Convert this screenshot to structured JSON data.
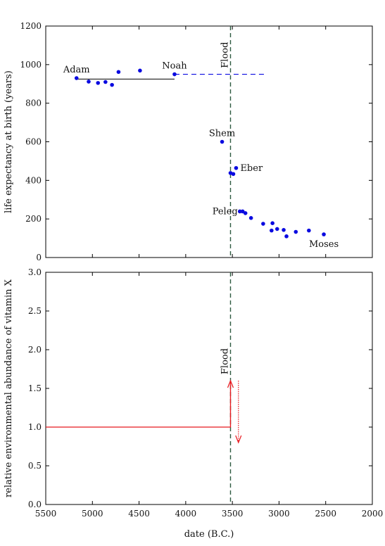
{
  "chart_data": [
    {
      "type": "scatter",
      "ylabel": "life expectancy at birth (years)",
      "xlim": [
        5500,
        2000
      ],
      "ylim": [
        0,
        1200
      ],
      "x_ticks": [
        5500,
        5000,
        4500,
        4000,
        3500,
        3000,
        2500,
        2000
      ],
      "y_ticks": [
        0,
        200,
        400,
        600,
        800,
        1000,
        1200
      ],
      "grid": false,
      "points": [
        {
          "x": 5170,
          "y": 930
        },
        {
          "x": 5040,
          "y": 912
        },
        {
          "x": 4940,
          "y": 905
        },
        {
          "x": 4860,
          "y": 910
        },
        {
          "x": 4790,
          "y": 895
        },
        {
          "x": 4720,
          "y": 962
        },
        {
          "x": 4490,
          "y": 969
        },
        {
          "x": 4120,
          "y": 950
        },
        {
          "x": 3610,
          "y": 600
        },
        {
          "x": 3520,
          "y": 438
        },
        {
          "x": 3490,
          "y": 433
        },
        {
          "x": 3460,
          "y": 464
        },
        {
          "x": 3420,
          "y": 239
        },
        {
          "x": 3390,
          "y": 239
        },
        {
          "x": 3360,
          "y": 230
        },
        {
          "x": 3300,
          "y": 205
        },
        {
          "x": 3170,
          "y": 175
        },
        {
          "x": 3080,
          "y": 140
        },
        {
          "x": 3070,
          "y": 178
        },
        {
          "x": 3020,
          "y": 148
        },
        {
          "x": 2950,
          "y": 143
        },
        {
          "x": 2920,
          "y": 110
        },
        {
          "x": 2820,
          "y": 133
        },
        {
          "x": 2680,
          "y": 140
        },
        {
          "x": 2520,
          "y": 120
        }
      ],
      "lines": [
        {
          "style": "solid",
          "x": [
            5170,
            4120
          ],
          "y": [
            925,
            925
          ]
        },
        {
          "style": "dashed",
          "x": [
            4120,
            3150
          ],
          "y": [
            950,
            950
          ]
        }
      ],
      "vline": {
        "x": 3520,
        "label": "Flood",
        "label_y": 1050
      },
      "annotations": [
        {
          "text": "Adam",
          "x": 5170,
          "y": 930
        },
        {
          "text": "Noah",
          "x": 4120,
          "y": 950
        },
        {
          "text": "Shem",
          "x": 3610,
          "y": 600
        },
        {
          "text": "Eber",
          "x": 3460,
          "y": 464
        },
        {
          "text": "Peleg",
          "x": 3420,
          "y": 239
        },
        {
          "text": "Moses",
          "x": 2520,
          "y": 120
        }
      ]
    },
    {
      "type": "line",
      "xlabel": "date (B.C.)",
      "ylabel": "relative environmental abundance of vitamin X",
      "xlim": [
        5500,
        2000
      ],
      "ylim": [
        0,
        3
      ],
      "x_ticks": [
        5500,
        5000,
        4500,
        4000,
        3500,
        3000,
        2500,
        2000
      ],
      "y_ticks": [
        0.0,
        0.5,
        1.0,
        1.5,
        2.0,
        2.5,
        3.0
      ],
      "y_tick_labels": [
        "0.0",
        "0.5",
        "1.0",
        "1.5",
        "2.0",
        "2.5",
        "3.0"
      ],
      "grid": false,
      "series": [
        {
          "x": [
            5500,
            3520,
            3520
          ],
          "y": [
            1.0,
            1.0,
            1.58
          ]
        }
      ],
      "arrows": [
        {
          "x": 3520,
          "from": 1.0,
          "to": 1.6,
          "style": "solid"
        },
        {
          "x": 3435,
          "from": 1.6,
          "to": 0.8,
          "style": "dotted"
        }
      ],
      "vline": {
        "x": 3520,
        "label": "Flood",
        "label_y": 1.85
      },
      "colors": {
        "series": "#e8191f",
        "points": "#0a0ae0",
        "vline": "#2e5a40"
      }
    }
  ]
}
